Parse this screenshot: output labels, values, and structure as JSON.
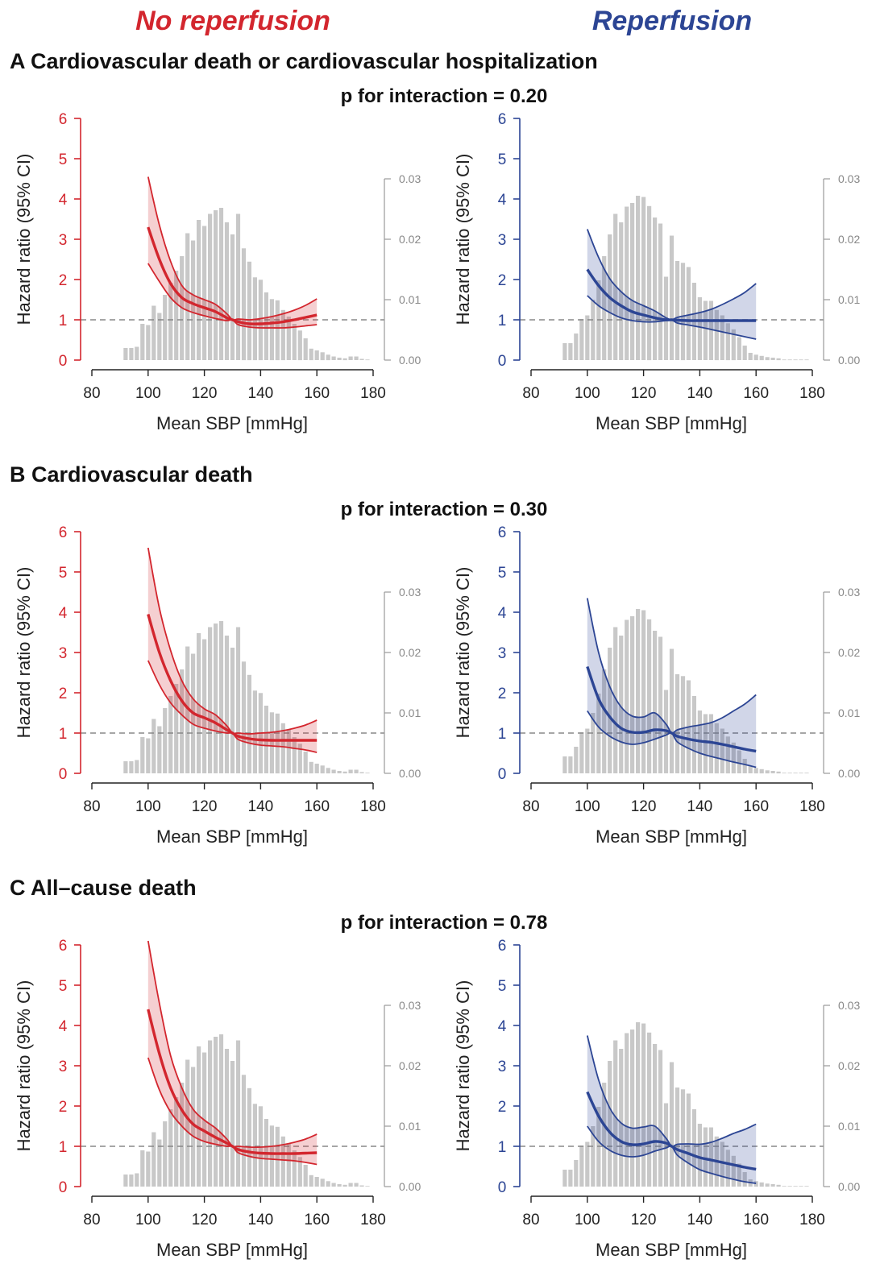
{
  "headers": {
    "left": "No reperfusion",
    "right": "Reperfusion"
  },
  "colors": {
    "left": "#d3262e",
    "right": "#2c4594",
    "histogram": "#c8c8c8",
    "reference": "#888888"
  },
  "axis_labels": {
    "y": "Hazard ratio (95% CI)",
    "x": "Mean SBP [mmHg]"
  },
  "x_ticks": [
    "80",
    "100",
    "120",
    "140",
    "160",
    "180"
  ],
  "y_ticks": [
    "0",
    "1",
    "2",
    "3",
    "4",
    "5",
    "6"
  ],
  "density_ticks": [
    "0.00",
    "0.01",
    "0.02",
    "0.03"
  ],
  "histogram": {
    "x": [
      92,
      94,
      96,
      98,
      100,
      102,
      104,
      106,
      108,
      110,
      112,
      114,
      116,
      118,
      120,
      122,
      124,
      126,
      128,
      130,
      132,
      134,
      136,
      138,
      140,
      142,
      144,
      146,
      148,
      150,
      152,
      154,
      156,
      158,
      160,
      162,
      164,
      166,
      168,
      170,
      172,
      174,
      176,
      178
    ],
    "left": [
      0.002,
      0.002,
      0.0022,
      0.006,
      0.0058,
      0.009,
      0.0078,
      0.0108,
      0.0128,
      0.0148,
      0.0172,
      0.021,
      0.0198,
      0.0232,
      0.0222,
      0.0242,
      0.0248,
      0.0252,
      0.0228,
      0.0208,
      0.0242,
      0.0185,
      0.0163,
      0.0137,
      0.0133,
      0.0112,
      0.0101,
      0.0099,
      0.0083,
      0.0072,
      0.006,
      0.0049,
      0.0036,
      0.0019,
      0.0016,
      0.0013,
      0.0009,
      0.0006,
      0.0004,
      0.0003,
      0.0006,
      0.0006,
      0.0002,
      0.0001
    ],
    "right": [
      0.0028,
      0.0028,
      0.0044,
      0.0068,
      0.0074,
      0.01,
      0.0132,
      0.0172,
      0.0208,
      0.0242,
      0.0228,
      0.0254,
      0.026,
      0.0272,
      0.027,
      0.0255,
      0.0236,
      0.0226,
      0.0138,
      0.0206,
      0.0164,
      0.0161,
      0.0154,
      0.0128,
      0.0104,
      0.0098,
      0.0098,
      0.0083,
      0.0074,
      0.0061,
      0.0051,
      0.0038,
      0.0024,
      0.0012,
      0.0009,
      0.0007,
      0.0005,
      0.0004,
      0.0003,
      0.0001,
      0.0001,
      0.0001,
      0.0001,
      0.0001
    ]
  },
  "panels": [
    {
      "label": "A Cardiovascular death or cardiovascular hospitalization",
      "p_text": "p for interaction = 0.20",
      "left": {
        "x": [
          100,
          104,
          108,
          112,
          116,
          120,
          124,
          128,
          130,
          132,
          136,
          140,
          144,
          148,
          152,
          156,
          160
        ],
        "hr": [
          3.3,
          2.5,
          1.9,
          1.55,
          1.4,
          1.3,
          1.2,
          1.05,
          1.0,
          0.95,
          0.9,
          0.9,
          0.92,
          0.95,
          1.0,
          1.06,
          1.12
        ],
        "lower": [
          2.4,
          1.95,
          1.55,
          1.3,
          1.18,
          1.1,
          1.03,
          0.98,
          1.0,
          0.88,
          0.82,
          0.8,
          0.8,
          0.8,
          0.82,
          0.85,
          0.88
        ],
        "upper": [
          4.55,
          3.35,
          2.45,
          1.85,
          1.62,
          1.5,
          1.38,
          1.15,
          1.0,
          1.02,
          1.0,
          1.03,
          1.08,
          1.15,
          1.24,
          1.36,
          1.52
        ]
      },
      "right": {
        "x": [
          100,
          104,
          108,
          112,
          116,
          120,
          124,
          128,
          130,
          132,
          136,
          140,
          144,
          148,
          152,
          156,
          160
        ],
        "hr": [
          2.25,
          1.85,
          1.55,
          1.35,
          1.2,
          1.12,
          1.05,
          1.0,
          1.0,
          0.99,
          0.98,
          0.98,
          0.98,
          0.98,
          0.98,
          0.98,
          0.98
        ],
        "lower": [
          1.6,
          1.35,
          1.18,
          1.05,
          0.98,
          0.95,
          0.95,
          0.98,
          1.0,
          0.92,
          0.87,
          0.82,
          0.76,
          0.7,
          0.64,
          0.58,
          0.52
        ],
        "upper": [
          3.25,
          2.55,
          2.02,
          1.7,
          1.48,
          1.35,
          1.22,
          1.05,
          1.0,
          1.06,
          1.12,
          1.18,
          1.26,
          1.38,
          1.52,
          1.68,
          1.9
        ]
      }
    },
    {
      "label": "B Cardiovascular death",
      "p_text": "p for interaction = 0.30",
      "left": {
        "x": [
          100,
          104,
          108,
          112,
          116,
          120,
          124,
          128,
          130,
          132,
          136,
          140,
          144,
          148,
          152,
          156,
          160
        ],
        "hr": [
          3.95,
          3.0,
          2.3,
          1.8,
          1.5,
          1.38,
          1.25,
          1.08,
          1.0,
          0.92,
          0.86,
          0.83,
          0.82,
          0.82,
          0.82,
          0.82,
          0.82
        ],
        "lower": [
          2.8,
          2.2,
          1.75,
          1.45,
          1.22,
          1.12,
          1.05,
          1.0,
          1.0,
          0.84,
          0.75,
          0.7,
          0.68,
          0.66,
          0.62,
          0.58,
          0.52
        ],
        "upper": [
          5.6,
          4.1,
          3.05,
          2.3,
          1.85,
          1.6,
          1.45,
          1.18,
          1.0,
          1.0,
          0.98,
          1.0,
          1.02,
          1.06,
          1.12,
          1.2,
          1.32
        ]
      },
      "right": {
        "x": [
          100,
          104,
          108,
          112,
          116,
          120,
          124,
          128,
          130,
          132,
          136,
          140,
          144,
          148,
          152,
          156,
          160
        ],
        "hr": [
          2.65,
          1.85,
          1.4,
          1.12,
          1.02,
          1.02,
          1.08,
          1.06,
          1.0,
          0.92,
          0.85,
          0.8,
          0.77,
          0.72,
          0.66,
          0.6,
          0.55
        ],
        "lower": [
          1.55,
          1.15,
          0.92,
          0.78,
          0.72,
          0.76,
          0.85,
          0.95,
          1.0,
          0.78,
          0.62,
          0.5,
          0.42,
          0.35,
          0.28,
          0.22,
          0.15
        ],
        "upper": [
          4.35,
          3.0,
          2.15,
          1.65,
          1.42,
          1.4,
          1.5,
          1.22,
          1.0,
          1.08,
          1.15,
          1.2,
          1.26,
          1.38,
          1.55,
          1.72,
          1.95
        ]
      }
    },
    {
      "label": "C All–cause death",
      "p_text": "p for interaction = 0.78",
      "left": {
        "x": [
          100,
          104,
          108,
          112,
          116,
          120,
          124,
          128,
          130,
          132,
          136,
          140,
          144,
          148,
          152,
          156,
          160
        ],
        "hr": [
          4.4,
          3.3,
          2.45,
          1.9,
          1.55,
          1.38,
          1.22,
          1.08,
          1.0,
          0.92,
          0.86,
          0.83,
          0.82,
          0.82,
          0.82,
          0.83,
          0.84
        ],
        "lower": [
          3.2,
          2.4,
          1.85,
          1.5,
          1.25,
          1.12,
          1.05,
          1.0,
          1.0,
          0.84,
          0.75,
          0.7,
          0.68,
          0.66,
          0.64,
          0.6,
          0.55
        ],
        "upper": [
          6.1,
          4.55,
          3.25,
          2.45,
          1.92,
          1.65,
          1.45,
          1.18,
          1.0,
          1.0,
          0.98,
          0.98,
          1.0,
          1.04,
          1.1,
          1.18,
          1.3
        ]
      },
      "right": {
        "x": [
          100,
          104,
          108,
          112,
          116,
          120,
          124,
          128,
          130,
          132,
          136,
          140,
          144,
          148,
          152,
          156,
          160
        ],
        "hr": [
          2.35,
          1.75,
          1.35,
          1.12,
          1.04,
          1.06,
          1.12,
          1.08,
          1.0,
          0.92,
          0.82,
          0.72,
          0.66,
          0.6,
          0.54,
          0.48,
          0.43
        ],
        "lower": [
          1.5,
          1.12,
          0.9,
          0.78,
          0.74,
          0.78,
          0.88,
          0.96,
          1.0,
          0.78,
          0.58,
          0.42,
          0.33,
          0.25,
          0.18,
          0.12,
          0.08
        ],
        "upper": [
          3.75,
          2.65,
          1.95,
          1.58,
          1.45,
          1.48,
          1.5,
          1.2,
          1.0,
          1.05,
          1.06,
          1.05,
          1.1,
          1.2,
          1.32,
          1.42,
          1.55
        ]
      }
    }
  ],
  "chart_data": {
    "type": "line",
    "xlabel": "Mean SBP [mmHg]",
    "ylabel": "Hazard ratio (95% CI)",
    "xlim": [
      80,
      180
    ],
    "ylim": [
      0,
      6
    ],
    "secondary_y": {
      "range": [
        0,
        0.03
      ],
      "ticks": [
        0.0,
        0.01,
        0.02,
        0.03
      ]
    },
    "reference_line": 1,
    "series_groups": [
      "No reperfusion",
      "Reperfusion"
    ],
    "panels": [
      "A Cardiovascular death or cardiovascular hospitalization",
      "B Cardiovascular death",
      "C All–cause death"
    ],
    "p_for_interaction": [
      0.2,
      0.3,
      0.78
    ]
  }
}
